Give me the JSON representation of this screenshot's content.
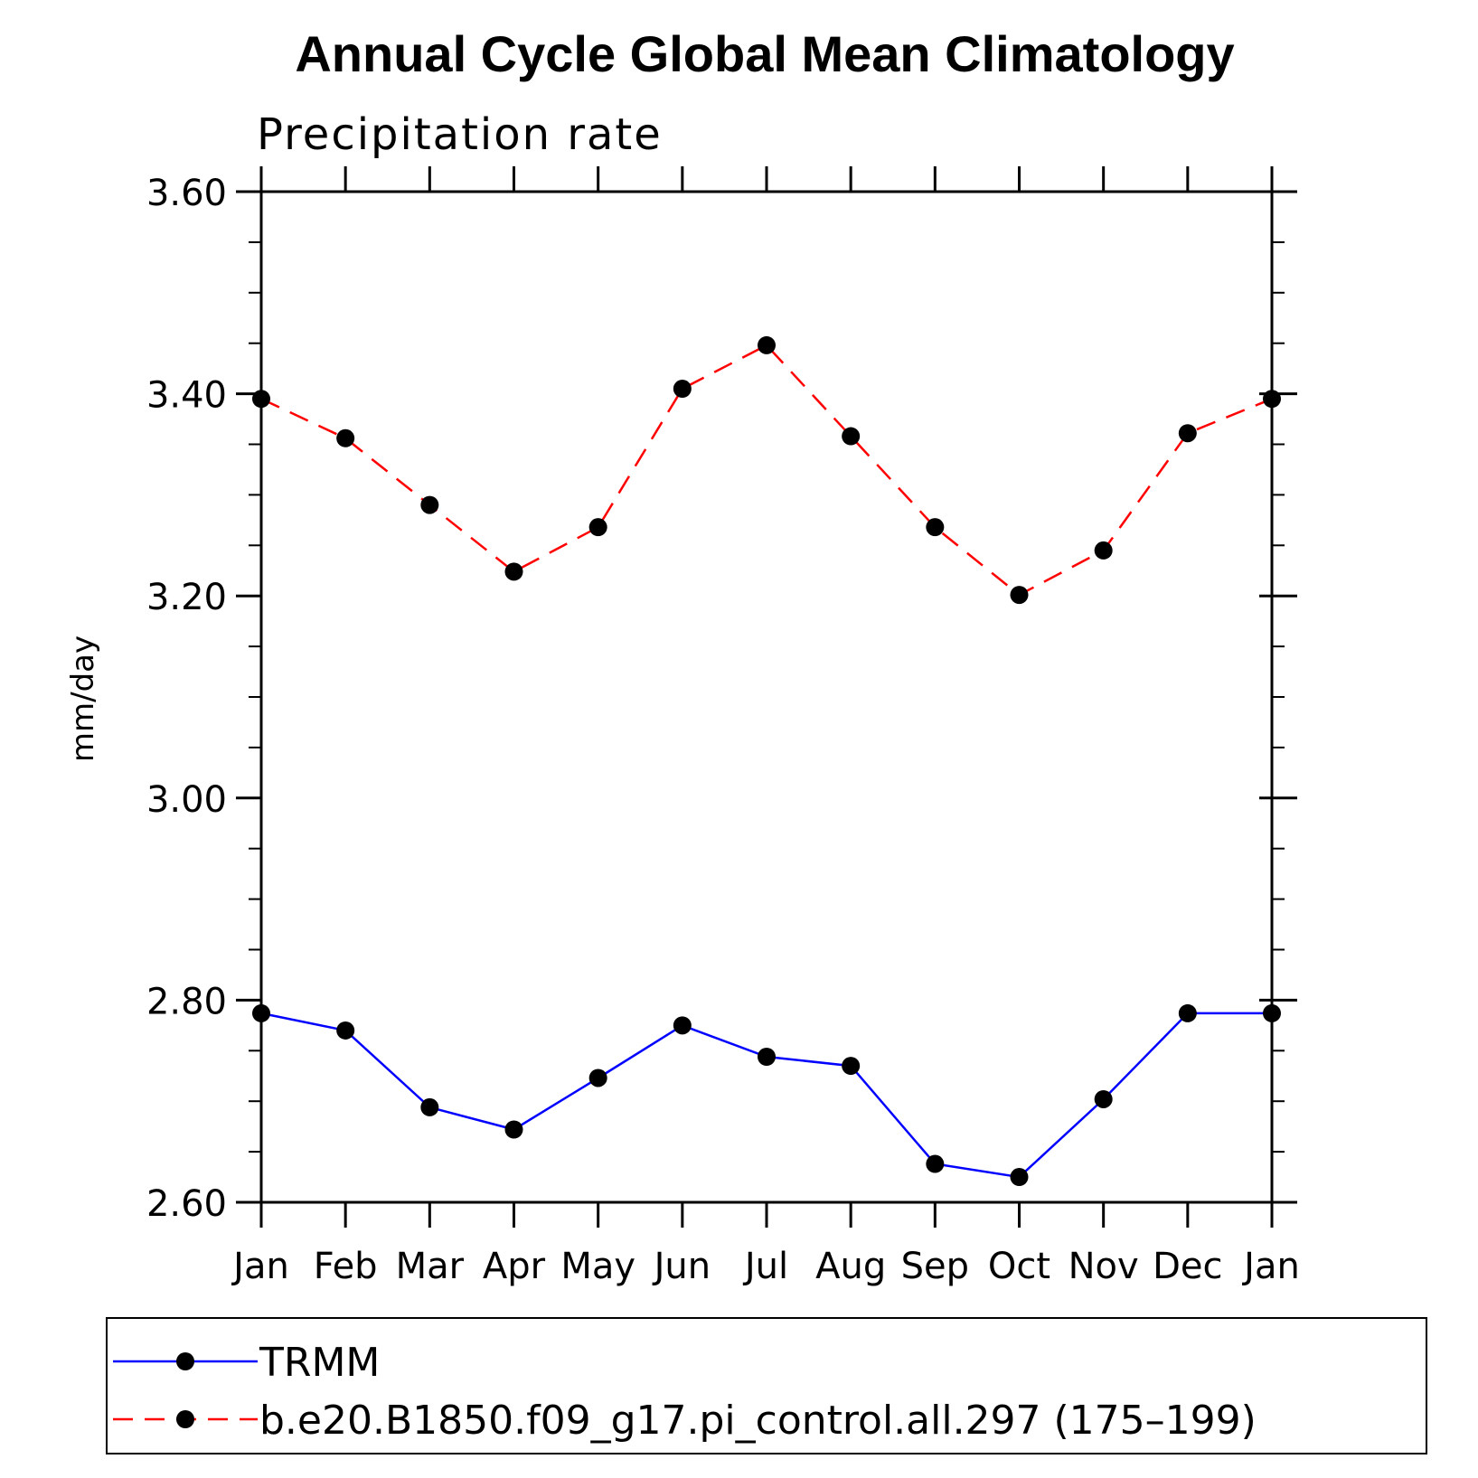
{
  "chart_data": {
    "type": "line",
    "title": "Annual Cycle Global Mean Climatology",
    "subtitle": "Precipitation rate",
    "xlabel": "",
    "ylabel": "mm/day",
    "categories": [
      "Jan",
      "Feb",
      "Mar",
      "Apr",
      "May",
      "Jun",
      "Jul",
      "Aug",
      "Sep",
      "Oct",
      "Nov",
      "Dec",
      "Jan"
    ],
    "ylim": [
      2.6,
      3.6
    ],
    "yticks": [
      "2.60",
      "2.80",
      "3.00",
      "3.20",
      "3.40",
      "3.60"
    ],
    "grid": false,
    "legend_position": "bottom",
    "series": [
      {
        "name": "TRMM",
        "color": "#0000ff",
        "line_style": "solid",
        "marker": "filled-circle",
        "values": [
          2.787,
          2.77,
          2.694,
          2.672,
          2.723,
          2.775,
          2.744,
          2.735,
          2.638,
          2.625,
          2.702,
          2.787,
          2.787
        ]
      },
      {
        "name": "b.e20.B1850.f09_g17.pi_control.all.297 (175–199)",
        "color": "#ff0000",
        "line_style": "dashed",
        "marker": "filled-circle",
        "values": [
          3.395,
          3.356,
          3.29,
          3.224,
          3.268,
          3.405,
          3.448,
          3.358,
          3.268,
          3.201,
          3.245,
          3.361,
          3.395
        ]
      }
    ]
  }
}
